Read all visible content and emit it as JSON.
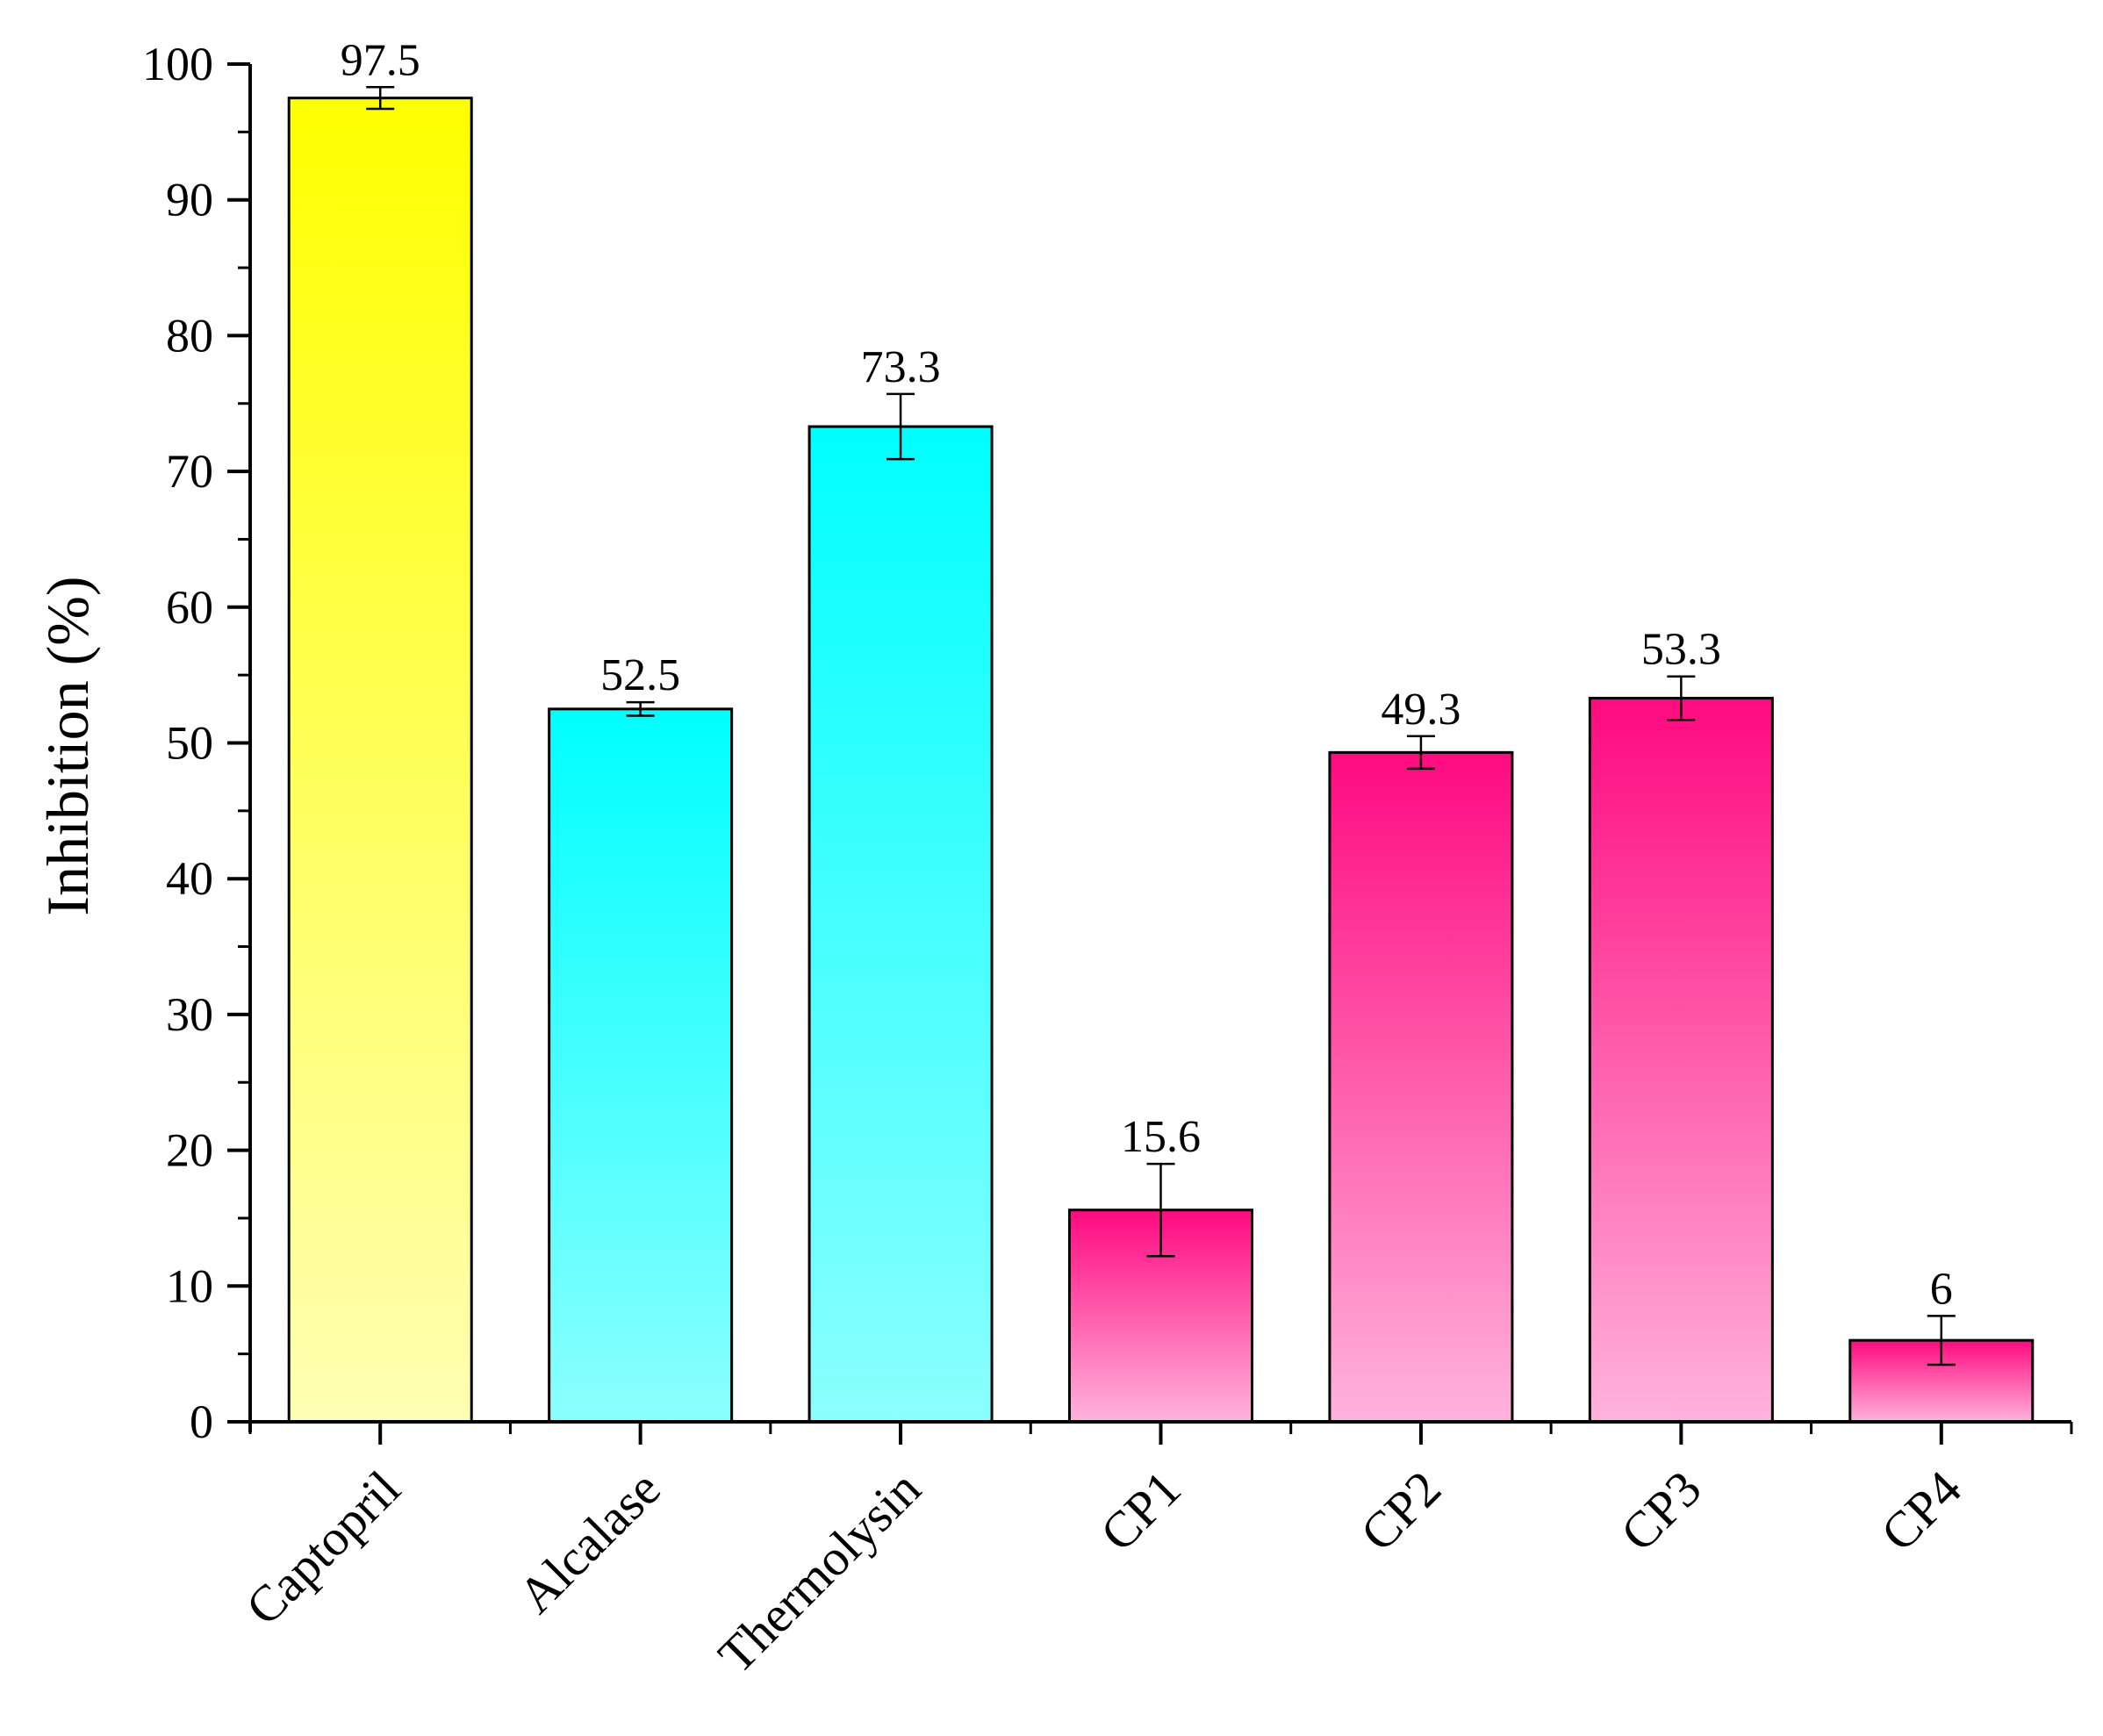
{
  "chart_data": {
    "type": "bar",
    "title": "",
    "xlabel": "",
    "ylabel": "Inhibition (%)",
    "ylim": [
      0,
      100
    ],
    "yticks": [
      0,
      10,
      20,
      30,
      40,
      50,
      60,
      70,
      80,
      90,
      100
    ],
    "grid": false,
    "categories": [
      "Captopril",
      "Alcalase",
      "Thermolysin",
      "CP1",
      "CP2",
      "CP3",
      "CP4"
    ],
    "values": [
      97.5,
      52.5,
      73.3,
      15.6,
      49.3,
      53.3,
      6
    ],
    "value_labels": [
      "97.5",
      "52.5",
      "73.3",
      "15.6",
      "49.3",
      "53.3",
      "6"
    ],
    "error": [
      0.8,
      0.5,
      2.4,
      3.4,
      1.2,
      1.6,
      1.8
    ],
    "bar_colors": {
      "Captopril": [
        "#ffff00",
        "#ffffb3"
      ],
      "Alcalase": [
        "#00ffff",
        "#8cffff"
      ],
      "Thermolysin": [
        "#00ffff",
        "#8cffff"
      ],
      "CP1": [
        "#ff0a80",
        "#ffb3dc"
      ],
      "CP2": [
        "#ff0a80",
        "#ffb3dc"
      ],
      "CP3": [
        "#ff0a80",
        "#ffb3dc"
      ],
      "CP4": [
        "#ff0a80",
        "#ffb3dc"
      ]
    }
  }
}
